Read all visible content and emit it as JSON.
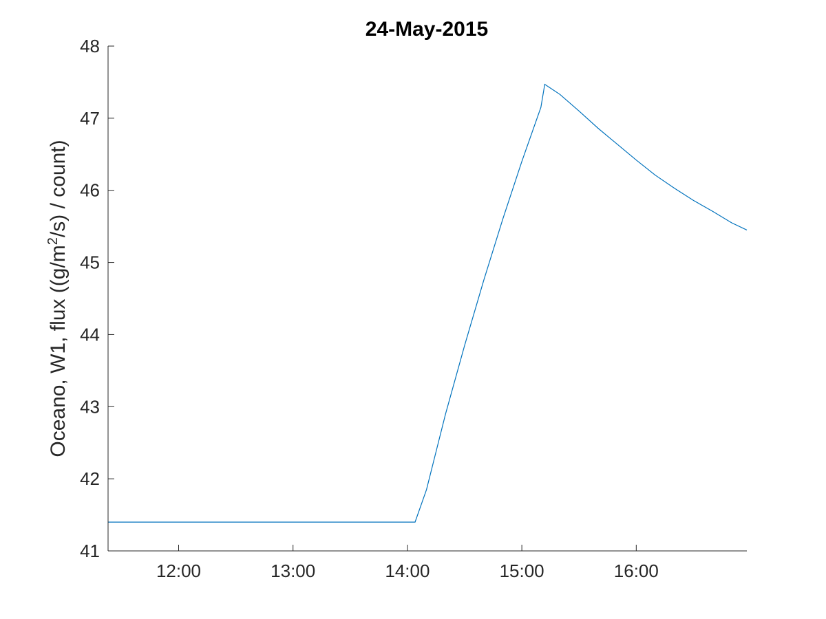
{
  "chart_data": {
    "type": "line",
    "title": "24-May-2015",
    "xlabel": "",
    "ylabel_parts": {
      "before": "Oceano, W1, flux ((g/m",
      "sup": "2",
      "after": "/s) / count)"
    },
    "xlim": [
      "11:23",
      "16:58"
    ],
    "ylim": [
      41,
      48
    ],
    "xticks": [
      "12:00",
      "13:00",
      "14:00",
      "15:00",
      "16:00"
    ],
    "yticks": [
      41,
      42,
      43,
      44,
      45,
      46,
      47,
      48
    ],
    "grid": false,
    "series": [
      {
        "name": "",
        "color": "#0072BD",
        "x": [
          "11:23",
          "12:00",
          "13:00",
          "14:00",
          "14:04",
          "14:10",
          "14:20",
          "14:30",
          "14:40",
          "14:50",
          "15:00",
          "15:10",
          "15:12",
          "15:20",
          "15:30",
          "15:40",
          "15:50",
          "16:00",
          "16:10",
          "16:20",
          "16:30",
          "16:40",
          "16:50",
          "16:58"
        ],
        "y": [
          41.4,
          41.4,
          41.4,
          41.4,
          41.4,
          41.85,
          42.9,
          43.85,
          44.75,
          45.6,
          46.4,
          47.15,
          47.47,
          47.33,
          47.1,
          46.86,
          46.64,
          46.42,
          46.21,
          46.03,
          45.86,
          45.71,
          45.55,
          45.45
        ]
      }
    ]
  }
}
